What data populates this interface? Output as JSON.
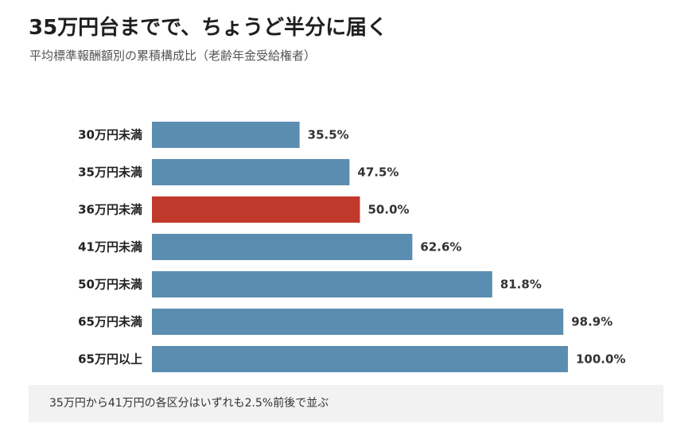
{
  "title": "35万円台までで、ちょうど半分に届く",
  "subtitle": "平均標準報酬額別の累積構成比（老齢年金受給権者）",
  "note": "35万円から41万円の各区分はいずれも2.5%前後で並ぶ",
  "colors": {
    "bar": "#5b8db0",
    "highlight": "#c0392b",
    "note_bg": "#f2f2f2"
  },
  "chart_data": {
    "type": "bar",
    "orientation": "horizontal",
    "categories": [
      "30万円未満",
      "35万円未満",
      "36万円未満",
      "41万円未満",
      "50万円未満",
      "65万円未満",
      "65万円以上"
    ],
    "values": [
      35.5,
      47.5,
      50.0,
      62.6,
      81.8,
      98.9,
      100.0
    ],
    "value_labels": [
      "35.5%",
      "47.5%",
      "50.0%",
      "62.6%",
      "81.8%",
      "98.9%",
      "100.0%"
    ],
    "highlight_index": 2,
    "xlim": [
      0,
      100
    ],
    "grid": false,
    "legend": "none",
    "title": "35万円台までで、ちょうど半分に届く",
    "xlabel": "",
    "ylabel": ""
  }
}
